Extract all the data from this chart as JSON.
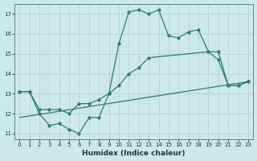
{
  "title": "",
  "xlabel": "Humidex (Indice chaleur)",
  "ylabel": "",
  "bg_color": "#cde8eb",
  "grid_color": "#b8d4d7",
  "line_color": "#2e7d6e",
  "xlim": [
    -0.5,
    23.5
  ],
  "ylim": [
    10.7,
    17.5
  ],
  "yticks": [
    11,
    12,
    13,
    14,
    15,
    16,
    17
  ],
  "xticks": [
    0,
    1,
    2,
    3,
    4,
    5,
    6,
    7,
    8,
    9,
    10,
    11,
    12,
    13,
    14,
    15,
    16,
    17,
    18,
    19,
    20,
    21,
    22,
    23
  ],
  "line1_x": [
    0,
    1,
    2,
    3,
    4,
    5,
    6,
    7,
    8,
    9,
    10,
    11,
    12,
    13,
    14,
    15,
    16,
    17,
    18,
    19,
    20,
    21,
    22,
    23
  ],
  "line1_y": [
    13.1,
    13.1,
    12.0,
    11.4,
    11.5,
    11.2,
    11.0,
    11.8,
    11.8,
    13.0,
    15.5,
    17.1,
    17.2,
    17.0,
    17.2,
    15.9,
    15.8,
    16.1,
    16.2,
    15.1,
    14.7,
    13.4,
    13.4,
    13.6
  ],
  "line2_x": [
    0,
    1,
    2,
    3,
    4,
    5,
    6,
    7,
    8,
    9,
    10,
    11,
    12,
    13,
    19,
    20,
    21,
    22,
    23
  ],
  "line2_y": [
    13.1,
    13.1,
    12.2,
    12.2,
    12.2,
    12.0,
    12.5,
    12.5,
    12.7,
    13.0,
    13.4,
    14.0,
    14.3,
    14.8,
    15.1,
    15.1,
    13.4,
    13.4,
    13.6
  ],
  "line3_x": [
    0,
    23
  ],
  "line3_y": [
    11.8,
    13.6
  ]
}
